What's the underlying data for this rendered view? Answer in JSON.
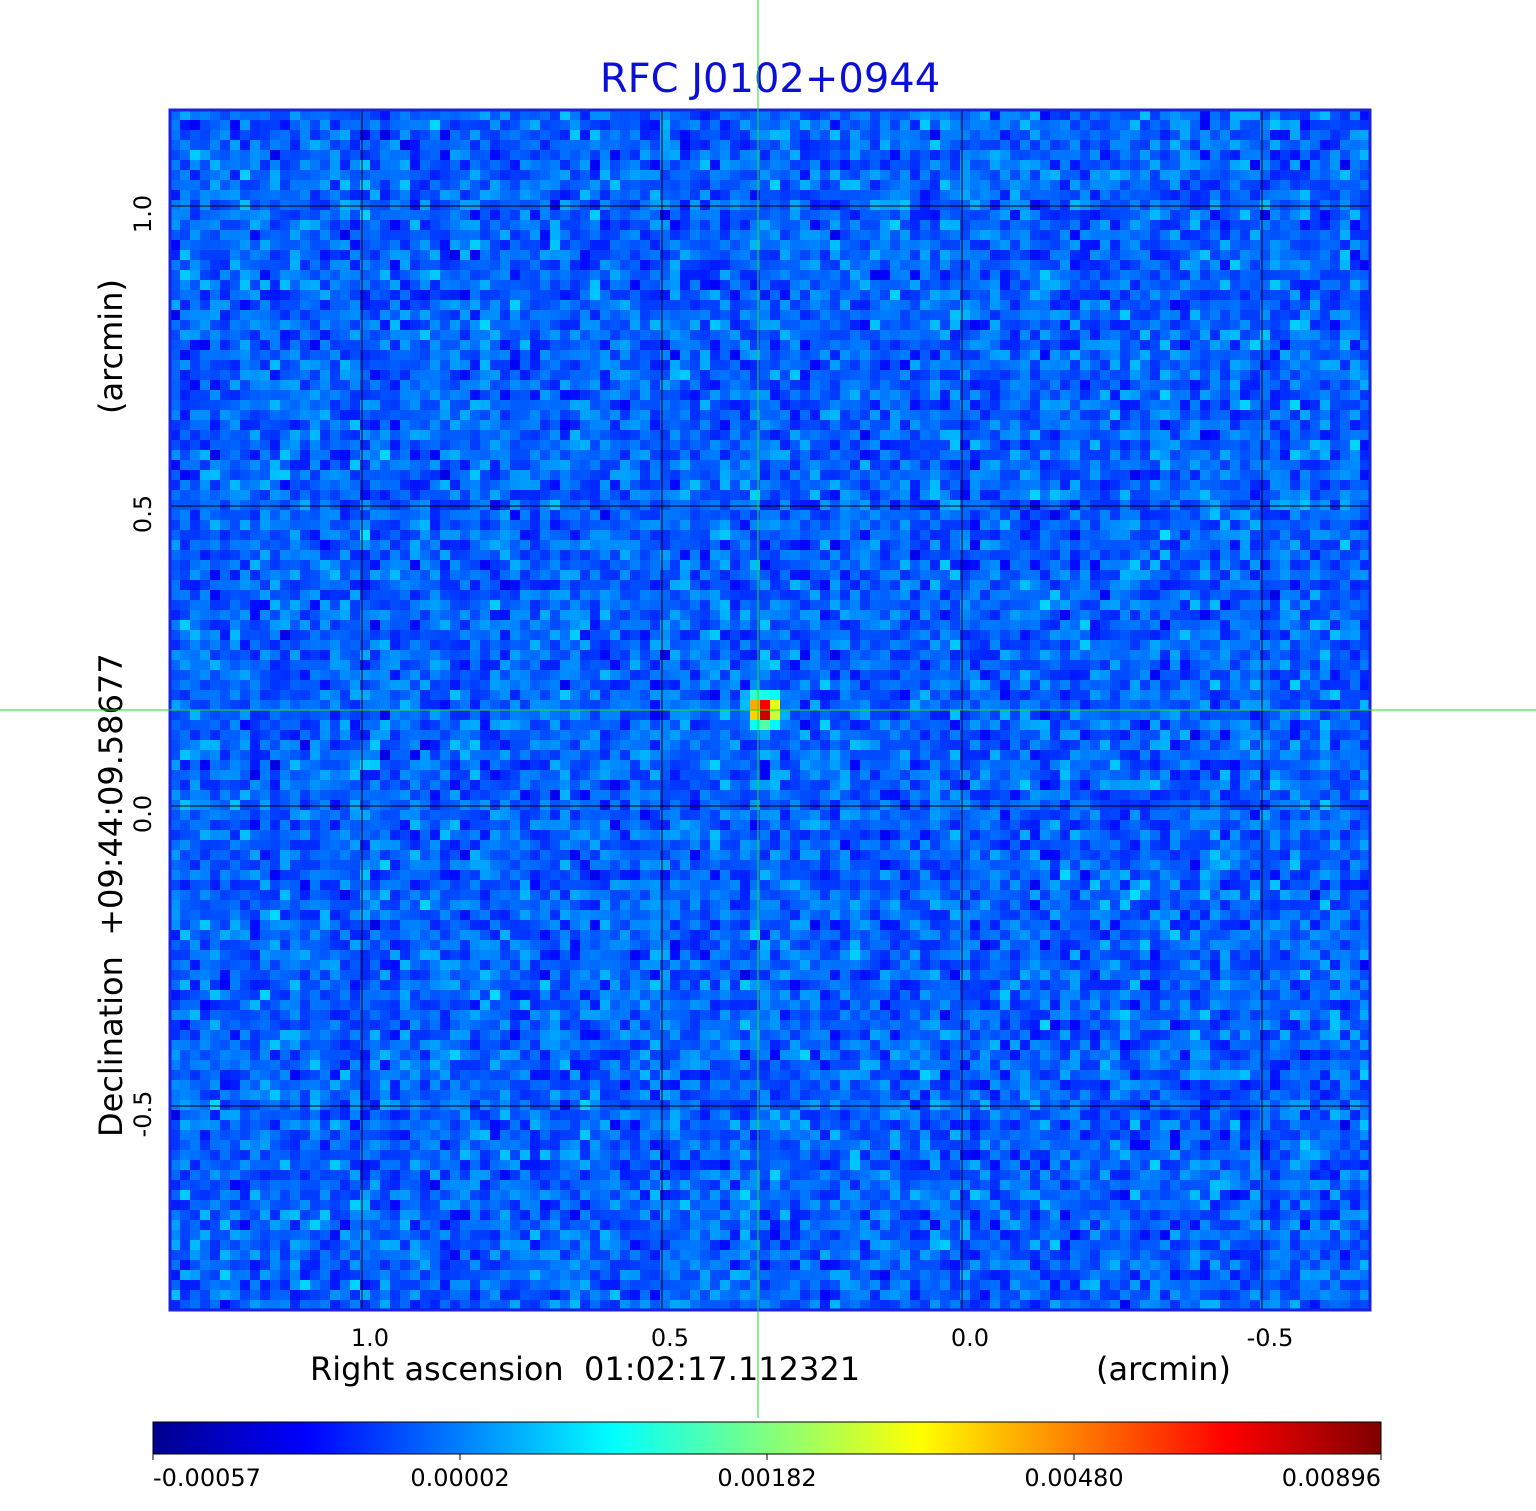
{
  "chart_data": {
    "type": "heatmap",
    "title": "RFC J0102+0944",
    "xlabel": "Right ascension  01:02:17.112321",
    "xunit": "(arcmin)",
    "ylabel": "Declination  +09:44:09.58677",
    "yunit": "(arcmin)",
    "x_ticks": [
      "1.0",
      "0.5",
      "0.0",
      "-0.5"
    ],
    "y_ticks": [
      "1.0",
      "0.5",
      "0.0",
      "-0.5"
    ],
    "x_tick_values": [
      1.0,
      0.5,
      0.0,
      -0.5
    ],
    "y_tick_values": [
      1.0,
      0.5,
      0.0,
      -0.5
    ],
    "xlim": [
      1.32,
      -0.68
    ],
    "ylim": [
      -0.84,
      1.16
    ],
    "grid": true,
    "crosshair": {
      "x": 0.34,
      "y": 0.16,
      "color": "#22dd22"
    },
    "source_peak": {
      "x": 0.33,
      "y": 0.16,
      "value": 0.00896
    },
    "colorbar": {
      "colormap": "jet",
      "ticks": [
        "-0.00057",
        "0.00002",
        "0.00182",
        "0.00480",
        "0.00896"
      ],
      "placement": "bottom"
    },
    "frame_color": "#1a22e0"
  }
}
